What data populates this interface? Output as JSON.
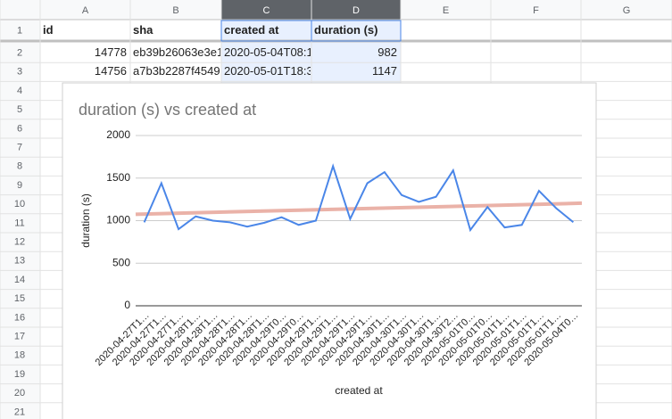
{
  "spreadsheet": {
    "columns": [
      "A",
      "B",
      "C",
      "D",
      "E",
      "F",
      "G"
    ],
    "rows": [
      1,
      2,
      3,
      4,
      5,
      6,
      7,
      8,
      9,
      10,
      11,
      12,
      13,
      14,
      15,
      16,
      17,
      18,
      19,
      20,
      21
    ],
    "cells": [
      [
        "id",
        "sha",
        "created at",
        "duration (s)"
      ],
      [
        14778,
        "eb39b26063e3e1",
        "2020-05-04T08:1",
        982
      ],
      [
        14756,
        "a7b3b2287f4549",
        "2020-05-01T18:3",
        1147
      ]
    ]
  },
  "chart_data": {
    "type": "line",
    "title": "duration (s) vs created at",
    "x_label": "created at",
    "y_label": "duration (s)",
    "categories": [
      "2020-04-27T1…",
      "2020-04-27T1…",
      "2020-04-27T1…",
      "2020-04-28T1…",
      "2020-04-28T1…",
      "2020-04-28T1…",
      "2020-04-28T1…",
      "2020-04-28T1…",
      "2020-04-29T0…",
      "2020-04-29T0…",
      "2020-04-29T1…",
      "2020-04-29T1…",
      "2020-04-29T1…",
      "2020-04-29T1…",
      "2020-04-30T1…",
      "2020-04-30T1…",
      "2020-04-30T1…",
      "2020-04-30T1…",
      "2020-04-30T2…",
      "2020-05-01T0…",
      "2020-05-01T0…",
      "2020-05-01T1…",
      "2020-05-01T1…",
      "2020-05-01T1…",
      "2020-05-01T1…",
      "2020-05-04T0…"
    ],
    "series": [
      {
        "name": "duration (s)",
        "color": "#4a86e8",
        "values": [
          980,
          1440,
          900,
          1050,
          1000,
          980,
          930,
          975,
          1040,
          950,
          1000,
          1640,
          1020,
          1440,
          1570,
          1300,
          1220,
          1280,
          1590,
          890,
          1160,
          920,
          950,
          1350,
          1147,
          982
        ]
      }
    ],
    "trendline": {
      "color": "#e6a499",
      "values": [
        1075,
        1205
      ]
    },
    "ylim": [
      0,
      2000
    ],
    "yticks": [
      0,
      500,
      1000,
      1500,
      2000
    ],
    "grid": true
  }
}
